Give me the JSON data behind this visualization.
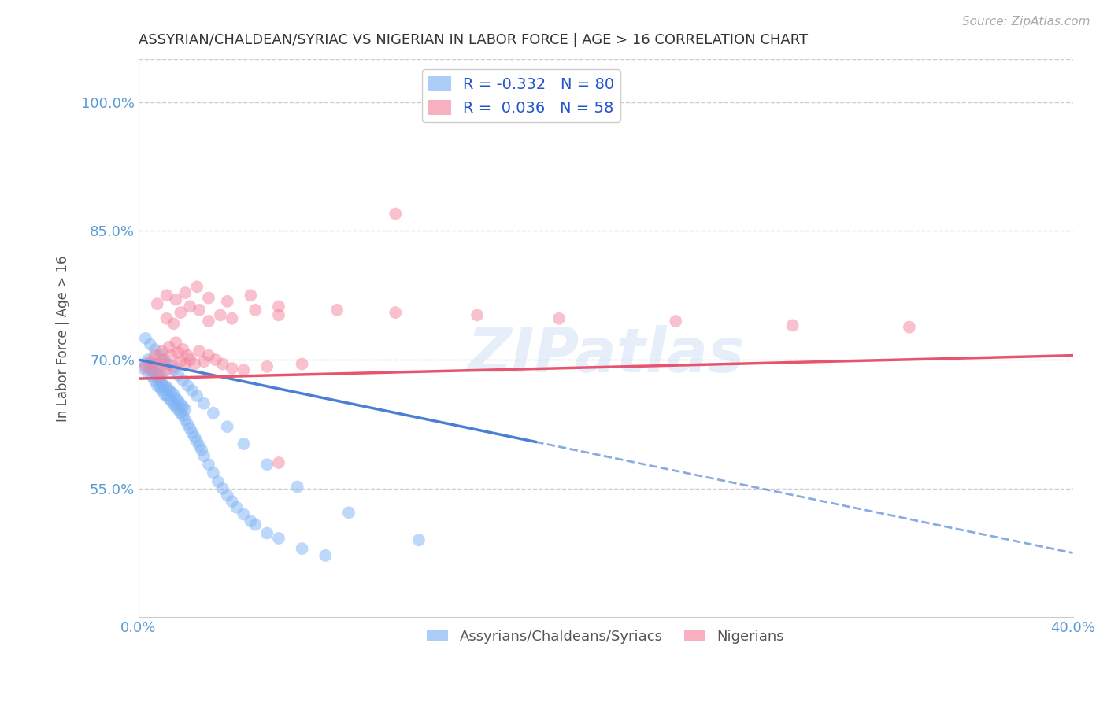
{
  "title": "ASSYRIAN/CHALDEAN/SYRIAC VS NIGERIAN IN LABOR FORCE | AGE > 16 CORRELATION CHART",
  "source": "Source: ZipAtlas.com",
  "ylabel": "In Labor Force | Age > 16",
  "xlim": [
    0.0,
    0.4
  ],
  "ylim": [
    0.4,
    1.05
  ],
  "x_ticks": [
    0.0,
    0.4
  ],
  "x_tick_labels": [
    "0.0%",
    "40.0%"
  ],
  "y_ticks": [
    0.55,
    0.7,
    0.85,
    1.0
  ],
  "y_tick_labels": [
    "55.0%",
    "70.0%",
    "85.0%",
    "100.0%"
  ],
  "blue_R": -0.332,
  "blue_N": 80,
  "pink_R": 0.036,
  "pink_N": 58,
  "blue_color": "#7eb3f5",
  "pink_color": "#f5849e",
  "blue_line_color": "#4a7fd4",
  "pink_line_color": "#e8536e",
  "watermark": "ZIPatlas",
  "legend_label_blue": "Assyrians/Chaldeans/Syriacs",
  "legend_label_pink": "Nigerians",
  "blue_line_x0": 0.0,
  "blue_line_y0": 0.7,
  "blue_line_x1": 0.4,
  "blue_line_y1": 0.475,
  "blue_line_solid_end": 0.17,
  "pink_line_x0": 0.0,
  "pink_line_y0": 0.678,
  "pink_line_x1": 0.4,
  "pink_line_y1": 0.705,
  "background_color": "#ffffff",
  "grid_color": "#cccccc",
  "title_color": "#333333",
  "axis_label_color": "#555555",
  "tick_label_color": "#5b9bd5",
  "source_color": "#aaaaaa",
  "blue_scatter_x": [
    0.002,
    0.003,
    0.004,
    0.004,
    0.005,
    0.005,
    0.006,
    0.006,
    0.007,
    0.007,
    0.008,
    0.008,
    0.008,
    0.009,
    0.009,
    0.01,
    0.01,
    0.01,
    0.011,
    0.011,
    0.012,
    0.012,
    0.013,
    0.013,
    0.014,
    0.014,
    0.015,
    0.015,
    0.016,
    0.016,
    0.017,
    0.017,
    0.018,
    0.018,
    0.019,
    0.019,
    0.02,
    0.02,
    0.021,
    0.022,
    0.023,
    0.024,
    0.025,
    0.026,
    0.027,
    0.028,
    0.03,
    0.032,
    0.034,
    0.036,
    0.038,
    0.04,
    0.042,
    0.045,
    0.048,
    0.05,
    0.055,
    0.06,
    0.07,
    0.08,
    0.003,
    0.005,
    0.007,
    0.009,
    0.011,
    0.013,
    0.015,
    0.017,
    0.019,
    0.021,
    0.023,
    0.025,
    0.028,
    0.032,
    0.038,
    0.045,
    0.055,
    0.068,
    0.09,
    0.12
  ],
  "blue_scatter_y": [
    0.69,
    0.695,
    0.685,
    0.7,
    0.688,
    0.695,
    0.68,
    0.692,
    0.685,
    0.675,
    0.68,
    0.67,
    0.69,
    0.668,
    0.678,
    0.672,
    0.665,
    0.682,
    0.66,
    0.67,
    0.658,
    0.668,
    0.655,
    0.665,
    0.652,
    0.662,
    0.648,
    0.66,
    0.645,
    0.655,
    0.642,
    0.652,
    0.638,
    0.648,
    0.635,
    0.645,
    0.63,
    0.642,
    0.625,
    0.62,
    0.615,
    0.61,
    0.605,
    0.6,
    0.595,
    0.588,
    0.578,
    0.568,
    0.558,
    0.55,
    0.542,
    0.535,
    0.528,
    0.52,
    0.512,
    0.508,
    0.498,
    0.492,
    0.48,
    0.472,
    0.725,
    0.718,
    0.712,
    0.706,
    0.7,
    0.694,
    0.688,
    0.682,
    0.676,
    0.67,
    0.664,
    0.658,
    0.649,
    0.638,
    0.622,
    0.602,
    0.578,
    0.552,
    0.522,
    0.49
  ],
  "pink_scatter_x": [
    0.003,
    0.005,
    0.006,
    0.007,
    0.008,
    0.009,
    0.01,
    0.01,
    0.011,
    0.012,
    0.013,
    0.014,
    0.015,
    0.016,
    0.017,
    0.018,
    0.019,
    0.02,
    0.021,
    0.022,
    0.024,
    0.026,
    0.028,
    0.03,
    0.033,
    0.036,
    0.04,
    0.045,
    0.055,
    0.07,
    0.012,
    0.015,
    0.018,
    0.022,
    0.026,
    0.03,
    0.035,
    0.04,
    0.05,
    0.06,
    0.008,
    0.012,
    0.016,
    0.02,
    0.025,
    0.03,
    0.038,
    0.048,
    0.06,
    0.085,
    0.11,
    0.145,
    0.18,
    0.23,
    0.28,
    0.33,
    0.11,
    0.06
  ],
  "pink_scatter_y": [
    0.692,
    0.698,
    0.688,
    0.705,
    0.695,
    0.682,
    0.71,
    0.7,
    0.695,
    0.688,
    0.715,
    0.705,
    0.692,
    0.72,
    0.708,
    0.698,
    0.712,
    0.695,
    0.705,
    0.7,
    0.695,
    0.71,
    0.698,
    0.705,
    0.7,
    0.695,
    0.69,
    0.688,
    0.692,
    0.695,
    0.748,
    0.742,
    0.755,
    0.762,
    0.758,
    0.745,
    0.752,
    0.748,
    0.758,
    0.752,
    0.765,
    0.775,
    0.77,
    0.778,
    0.785,
    0.772,
    0.768,
    0.775,
    0.762,
    0.758,
    0.755,
    0.752,
    0.748,
    0.745,
    0.74,
    0.738,
    0.87,
    0.58
  ]
}
